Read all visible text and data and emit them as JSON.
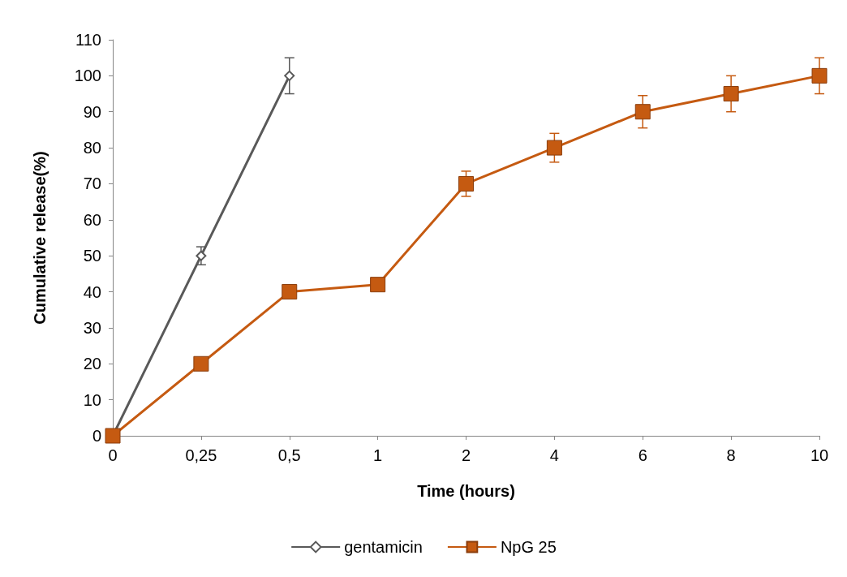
{
  "chart_data": {
    "type": "line",
    "xlabel": "Time (hours)",
    "ylabel": "Cumulative release(%)",
    "categories": [
      "0",
      "0,25",
      "0,5",
      "1",
      "2",
      "4",
      "6",
      "8",
      "10"
    ],
    "ylim": [
      0,
      110
    ],
    "yticks": [
      0,
      10,
      20,
      30,
      40,
      50,
      60,
      70,
      80,
      90,
      100,
      110
    ],
    "grid": false,
    "legend": "bottom",
    "line_style": "solid",
    "series": [
      {
        "name": "gentamicin",
        "color": "#595959",
        "marker": "diamond",
        "values": [
          0,
          50,
          100,
          null,
          null,
          null,
          null,
          null,
          null
        ],
        "errors": [
          null,
          2.5,
          5,
          null,
          null,
          null,
          null,
          null,
          null
        ]
      },
      {
        "name": "NpG 25",
        "color": "#c55a11",
        "marker": "square",
        "values": [
          0,
          20,
          40,
          42,
          70,
          80,
          90,
          95,
          100
        ],
        "errors": [
          null,
          null,
          null,
          null,
          3.5,
          4,
          4.5,
          5,
          5
        ]
      }
    ]
  }
}
